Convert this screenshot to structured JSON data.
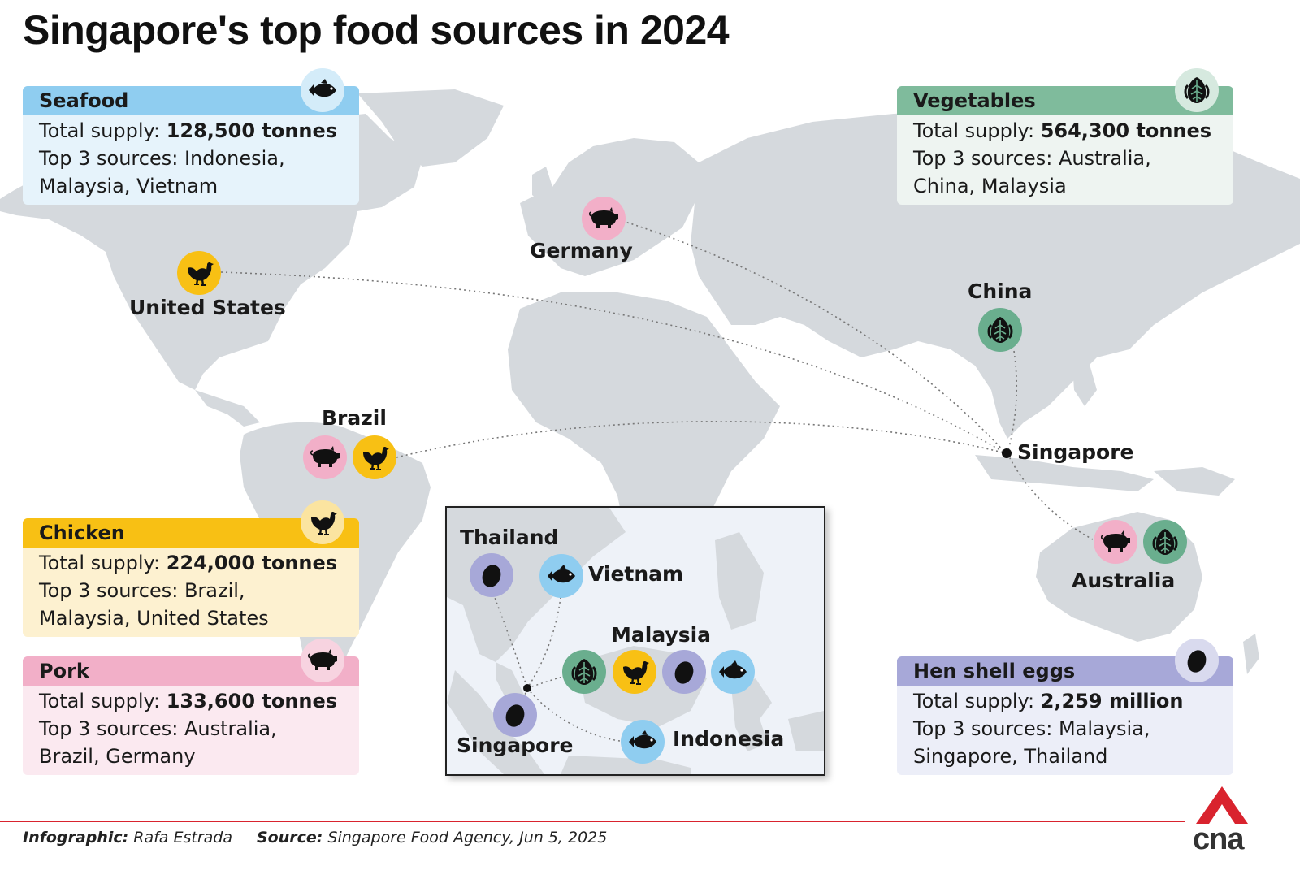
{
  "title": "Singapore's top food sources in 2024",
  "cards": {
    "seafood": {
      "heading": "Seafood",
      "supply_label": "Total supply: ",
      "supply_value": "128,500 tonnes",
      "sources_line1": "Top 3 sources: Indonesia,",
      "sources_line2": "Malaysia, Vietnam",
      "icon": "fish-icon"
    },
    "vegetables": {
      "heading": "Vegetables",
      "supply_label": "Total supply: ",
      "supply_value": "564,300 tonnes",
      "sources_line1": "Top 3 sources: Australia,",
      "sources_line2": "China, Malaysia",
      "icon": "leafy-vegetable-icon"
    },
    "chicken": {
      "heading": "Chicken",
      "supply_label": "Total supply: ",
      "supply_value": "224,000 tonnes",
      "sources_line1": "Top 3 sources: Brazil,",
      "sources_line2": "Malaysia, United States",
      "icon": "chicken-icon"
    },
    "pork": {
      "heading": "Pork",
      "supply_label": "Total supply: ",
      "supply_value": "133,600 tonnes",
      "sources_line1": "Top 3 sources: Australia,",
      "sources_line2": "Brazil, Germany",
      "icon": "pig-icon"
    },
    "eggs": {
      "heading": "Hen shell eggs",
      "supply_label": "Total supply: ",
      "supply_value": "2,259 million",
      "sources_line1": "Top 3 sources: Malaysia,",
      "sources_line2": "Singapore, Thailand",
      "icon": "egg-icon"
    }
  },
  "map_labels": {
    "germany": "Germany",
    "united_states": "United States",
    "china": "China",
    "brazil": "Brazil",
    "singapore": "Singapore",
    "australia": "Australia"
  },
  "inset_labels": {
    "thailand": "Thailand",
    "vietnam": "Vietnam",
    "malaysia": "Malaysia",
    "singapore": "Singapore",
    "indonesia": "Indonesia"
  },
  "colors": {
    "seafood": "#8fcdf0",
    "chicken": "#f8c014",
    "pork": "#f2afc8",
    "vegetables": "#6aae8e",
    "eggs": "#a7a8d8",
    "land": "#d5d9dd",
    "accent_red": "#d9232e"
  },
  "footer": {
    "infographic_label": "Infographic:",
    "infographic_value": " Rafa Estrada",
    "source_label": "Source:",
    "source_value": " Singapore Food Agency, Jun 5, 2025"
  },
  "logo": {
    "text": "cna"
  }
}
